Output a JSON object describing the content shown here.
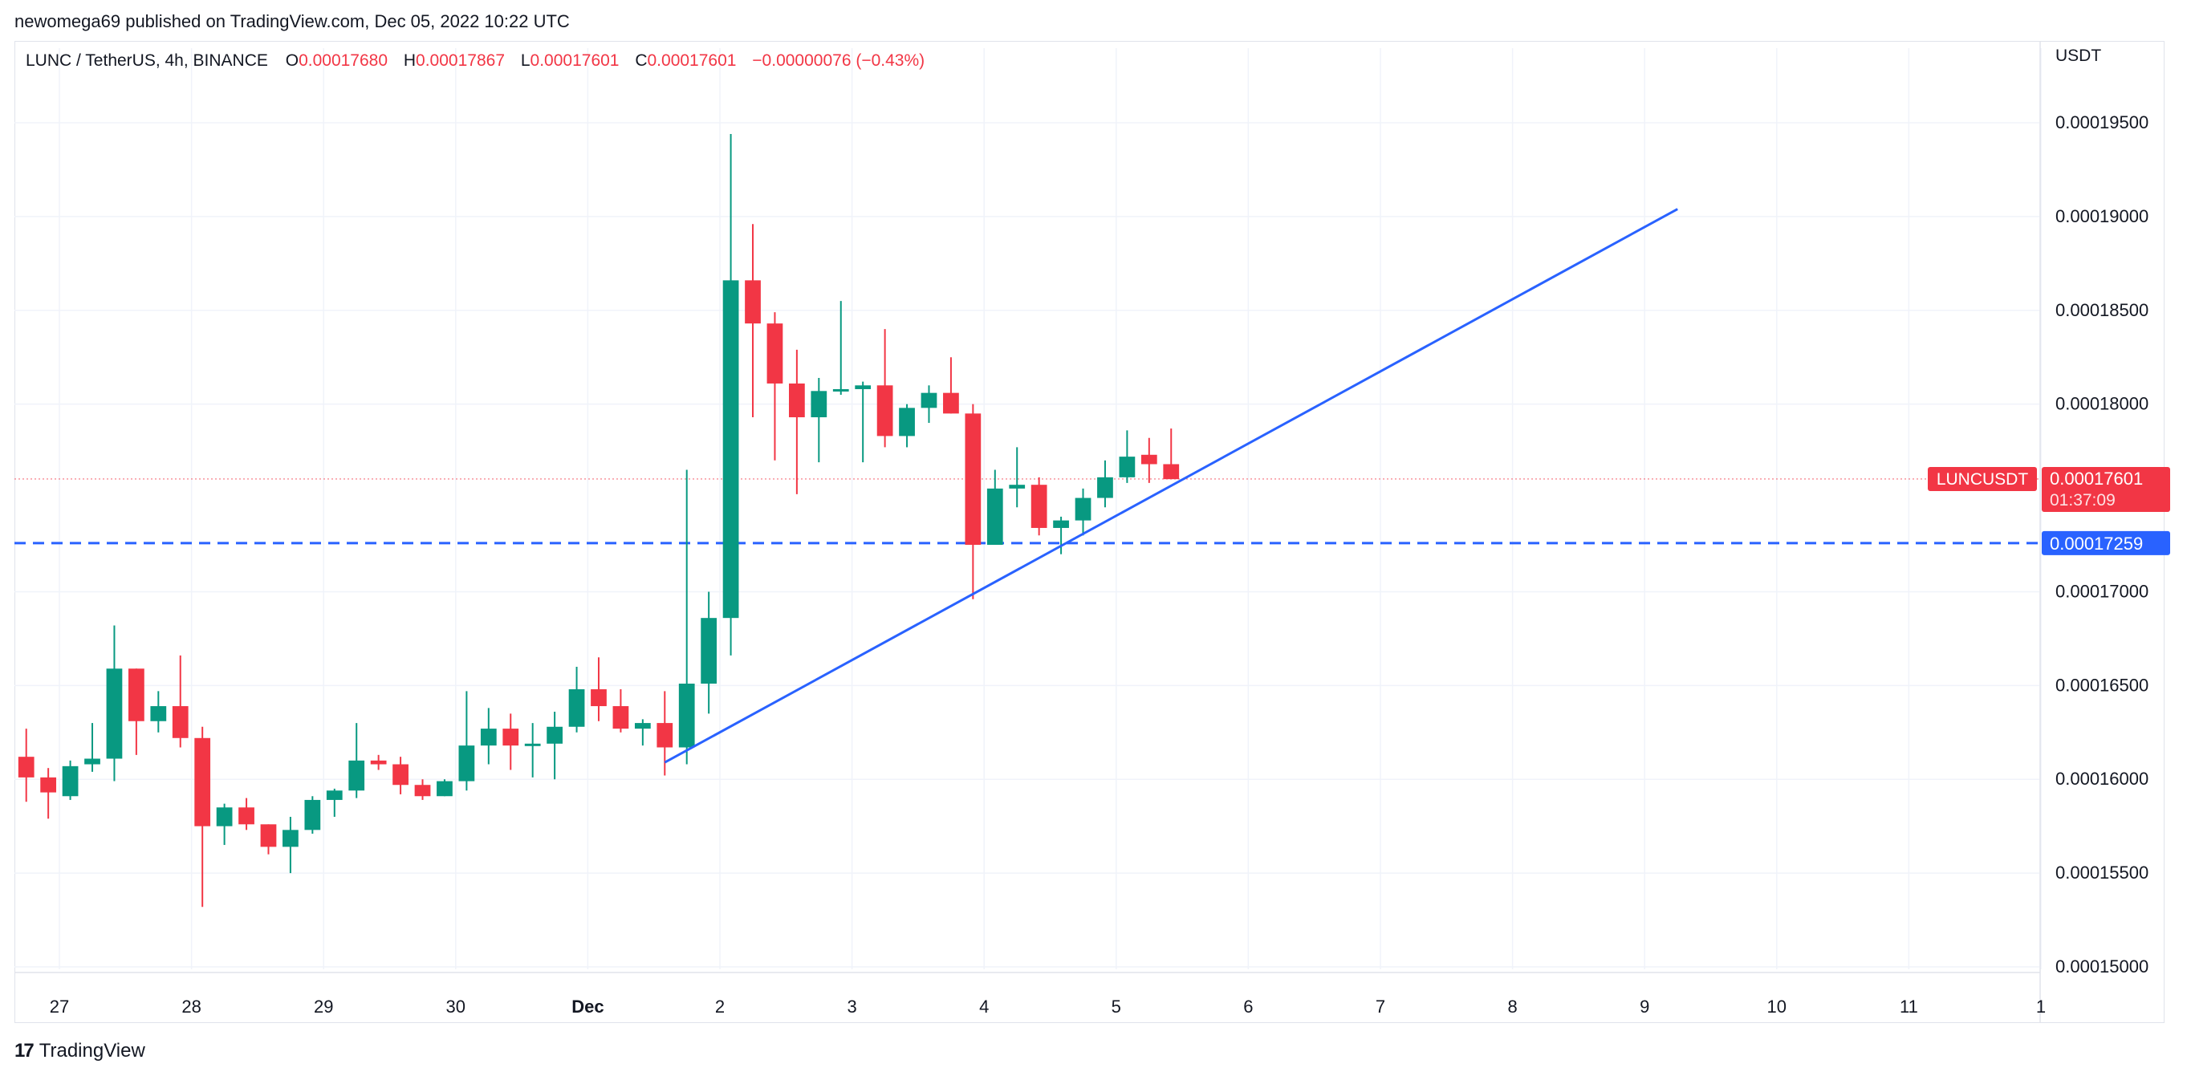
{
  "publish_line": "newomega69 published on TradingView.com, Dec 05, 2022 10:22 UTC",
  "legend": {
    "symbol": "LUNC / TetherUS, 4h, BINANCE",
    "o_key": "O",
    "o_val": "0.00017680",
    "h_key": "H",
    "h_val": "0.00017867",
    "l_key": "L",
    "l_val": "0.00017601",
    "c_key": "C",
    "c_val": "0.00017601",
    "change": "−0.00000076 (−0.43%)"
  },
  "axis_unit": "USDT",
  "current_price_tag": {
    "symbol": "LUNCUSDT",
    "price": "0.00017601",
    "countdown": "01:37:09"
  },
  "hline_tag": {
    "price": "0.00017259"
  },
  "footer": {
    "brand": "TradingView",
    "logo_mark": "17"
  },
  "colors": {
    "up": "#089981",
    "down": "#f23645",
    "drawing": "#2962ff",
    "grid": "#f0f3fa"
  },
  "chart_data": {
    "type": "candlestick",
    "timeframe": "4h",
    "y_ticks": [
      "0.00019500",
      "0.00019000",
      "0.00018500",
      "0.00018000",
      "0.00017000",
      "0.00016500",
      "0.00016000",
      "0.00015500",
      "0.00015000"
    ],
    "x_ticks": [
      "27",
      "28",
      "29",
      "30",
      "Dec",
      "2",
      "3",
      "4",
      "5",
      "6",
      "7",
      "8",
      "9",
      "10",
      "11",
      "1"
    ],
    "ylim": [
      0.0001475,
      0.000199
    ],
    "candles": [
      {
        "o": 0.0001612,
        "h": 0.0001627,
        "l": 0.0001588,
        "c": 0.0001601
      },
      {
        "o": 0.0001601,
        "h": 0.0001606,
        "l": 0.0001579,
        "c": 0.0001593
      },
      {
        "o": 0.0001591,
        "h": 0.000161,
        "l": 0.0001589,
        "c": 0.0001607
      },
      {
        "o": 0.0001608,
        "h": 0.000163,
        "l": 0.0001604,
        "c": 0.0001611
      },
      {
        "o": 0.0001611,
        "h": 0.0001682,
        "l": 0.0001599,
        "c": 0.0001659
      },
      {
        "o": 0.0001659,
        "h": 0.0001659,
        "l": 0.0001613,
        "c": 0.0001631
      },
      {
        "o": 0.0001631,
        "h": 0.0001647,
        "l": 0.0001625,
        "c": 0.0001639
      },
      {
        "o": 0.0001639,
        "h": 0.0001666,
        "l": 0.0001617,
        "c": 0.0001622
      },
      {
        "o": 0.0001622,
        "h": 0.0001628,
        "l": 0.0001532,
        "c": 0.0001575
      },
      {
        "o": 0.0001575,
        "h": 0.0001587,
        "l": 0.0001565,
        "c": 0.0001585
      },
      {
        "o": 0.0001585,
        "h": 0.000159,
        "l": 0.0001573,
        "c": 0.0001576
      },
      {
        "o": 0.0001576,
        "h": 0.0001576,
        "l": 0.000156,
        "c": 0.0001564
      },
      {
        "o": 0.0001564,
        "h": 0.000158,
        "l": 0.000155,
        "c": 0.0001573
      },
      {
        "o": 0.0001573,
        "h": 0.0001591,
        "l": 0.0001571,
        "c": 0.0001589
      },
      {
        "o": 0.0001589,
        "h": 0.0001595,
        "l": 0.000158,
        "c": 0.0001594
      },
      {
        "o": 0.0001594,
        "h": 0.000163,
        "l": 0.000159,
        "c": 0.000161
      },
      {
        "o": 0.000161,
        "h": 0.0001613,
        "l": 0.0001605,
        "c": 0.0001608
      },
      {
        "o": 0.0001608,
        "h": 0.0001612,
        "l": 0.0001592,
        "c": 0.0001597
      },
      {
        "o": 0.0001597,
        "h": 0.00016,
        "l": 0.0001589,
        "c": 0.0001591
      },
      {
        "o": 0.0001591,
        "h": 0.00016,
        "l": 0.0001591,
        "c": 0.0001599
      },
      {
        "o": 0.0001599,
        "h": 0.0001647,
        "l": 0.0001594,
        "c": 0.0001618
      },
      {
        "o": 0.0001618,
        "h": 0.0001638,
        "l": 0.0001608,
        "c": 0.0001627
      },
      {
        "o": 0.0001627,
        "h": 0.0001635,
        "l": 0.0001605,
        "c": 0.0001618
      },
      {
        "o": 0.0001618,
        "h": 0.000163,
        "l": 0.0001601,
        "c": 0.0001619
      },
      {
        "o": 0.0001619,
        "h": 0.0001636,
        "l": 0.00016,
        "c": 0.0001628
      },
      {
        "o": 0.0001628,
        "h": 0.000166,
        "l": 0.0001625,
        "c": 0.0001648
      },
      {
        "o": 0.0001648,
        "h": 0.0001665,
        "l": 0.0001631,
        "c": 0.0001639
      },
      {
        "o": 0.0001639,
        "h": 0.0001648,
        "l": 0.0001625,
        "c": 0.0001627
      },
      {
        "o": 0.0001627,
        "h": 0.0001632,
        "l": 0.0001618,
        "c": 0.000163
      },
      {
        "o": 0.000163,
        "h": 0.0001647,
        "l": 0.0001602,
        "c": 0.0001617
      },
      {
        "o": 0.0001617,
        "h": 0.0001765,
        "l": 0.0001608,
        "c": 0.0001651
      },
      {
        "o": 0.0001651,
        "h": 0.00017,
        "l": 0.0001635,
        "c": 0.0001686
      },
      {
        "o": 0.0001686,
        "h": 0.0001944,
        "l": 0.0001666,
        "c": 0.0001866
      },
      {
        "o": 0.0001866,
        "h": 0.0001896,
        "l": 0.0001793,
        "c": 0.0001843
      },
      {
        "o": 0.0001843,
        "h": 0.0001849,
        "l": 0.000177,
        "c": 0.0001811
      },
      {
        "o": 0.0001811,
        "h": 0.0001829,
        "l": 0.0001752,
        "c": 0.0001793
      },
      {
        "o": 0.0001793,
        "h": 0.0001814,
        "l": 0.0001769,
        "c": 0.0001807
      },
      {
        "o": 0.0001807,
        "h": 0.0001855,
        "l": 0.0001805,
        "c": 0.0001808
      },
      {
        "o": 0.0001808,
        "h": 0.0001812,
        "l": 0.0001769,
        "c": 0.000181
      },
      {
        "o": 0.000181,
        "h": 0.000184,
        "l": 0.0001777,
        "c": 0.0001783
      },
      {
        "o": 0.0001783,
        "h": 0.00018,
        "l": 0.0001777,
        "c": 0.0001798
      },
      {
        "o": 0.0001798,
        "h": 0.000181,
        "l": 0.000179,
        "c": 0.0001806
      },
      {
        "o": 0.0001806,
        "h": 0.0001825,
        "l": 0.0001795,
        "c": 0.0001795
      },
      {
        "o": 0.0001795,
        "h": 0.00018,
        "l": 0.0001696,
        "c": 0.0001725
      },
      {
        "o": 0.0001725,
        "h": 0.0001765,
        "l": 0.0001725,
        "c": 0.0001755
      },
      {
        "o": 0.0001755,
        "h": 0.0001777,
        "l": 0.0001745,
        "c": 0.0001757
      },
      {
        "o": 0.0001757,
        "h": 0.0001761,
        "l": 0.000173,
        "c": 0.0001734
      },
      {
        "o": 0.0001734,
        "h": 0.000174,
        "l": 0.000172,
        "c": 0.0001738
      },
      {
        "o": 0.0001738,
        "h": 0.0001755,
        "l": 0.000173,
        "c": 0.000175
      },
      {
        "o": 0.000175,
        "h": 0.000177,
        "l": 0.0001745,
        "c": 0.0001761
      },
      {
        "o": 0.0001761,
        "h": 0.0001786,
        "l": 0.0001758,
        "c": 0.0001772
      },
      {
        "o": 0.0001773,
        "h": 0.0001782,
        "l": 0.0001758,
        "c": 0.0001768
      },
      {
        "o": 0.0001768,
        "h": 0.0001787,
        "l": 0.000176,
        "c": 0.000176
      }
    ],
    "horizontal_line": {
      "price": 0.00017259,
      "style": "dashed"
    },
    "trend_line": {
      "from": {
        "bar": 29,
        "price": 0.0001609
      },
      "to": {
        "bar": 75,
        "price": 0.0001904
      }
    },
    "current_price": 0.00017601
  }
}
